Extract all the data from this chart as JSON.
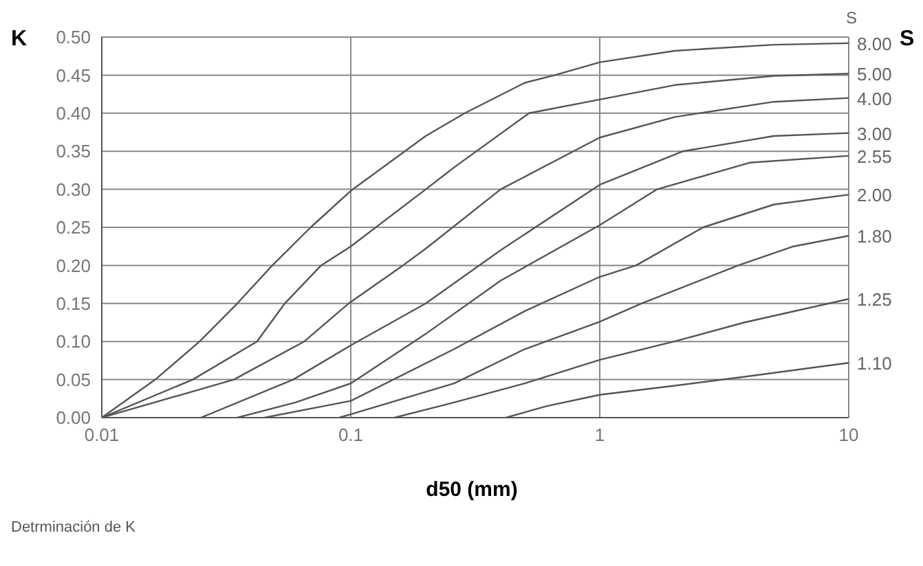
{
  "chart_data": {
    "type": "line",
    "ylabel": "K",
    "xlabel": "d50 (mm)",
    "legend_title": "S",
    "y2label": "S",
    "annotations": [
      "Detrminación de K"
    ],
    "log": "x",
    "grid": true,
    "marker": "none",
    "line_style": "solid",
    "xlim": [
      0.01,
      10
    ],
    "xticks": [
      0.01,
      0.1,
      1,
      10
    ],
    "ylim": [
      0,
      0.5
    ],
    "yticks": [
      {
        "value": 0,
        "label": "0.00"
      },
      {
        "value": 0.05,
        "label": "0.05"
      },
      {
        "value": 0.1,
        "label": "0.10"
      },
      {
        "value": 0.15,
        "label": "0.15"
      },
      {
        "value": 0.2,
        "label": "0.20"
      },
      {
        "value": 0.25,
        "label": "0.25"
      },
      {
        "value": 0.3,
        "label": "0.30"
      },
      {
        "value": 0.35,
        "label": "0.35"
      },
      {
        "value": 0.4,
        "label": "0.40"
      },
      {
        "value": 0.45,
        "label": "0.45"
      },
      {
        "value": 0.5,
        "label": "0.50"
      }
    ],
    "series": [
      {
        "name": "8.00",
        "color": "#555555",
        "x": [
          0.01,
          0.0164,
          0.0247,
          0.035,
          0.0484,
          0.069,
          0.1,
          0.2,
          0.287,
          0.5,
          0.66,
          1,
          2,
          5,
          10
        ],
        "values": [
          0,
          0.05,
          0.1,
          0.15,
          0.2,
          0.25,
          0.298,
          0.37,
          0.4,
          0.44,
          0.45,
          0.467,
          0.482,
          0.49,
          0.492
        ]
      },
      {
        "name": "5.00",
        "color": "#555555",
        "x": [
          0.01,
          0.0232,
          0.042,
          0.0543,
          0.076,
          0.1,
          0.2,
          0.263,
          0.52,
          1,
          2,
          5,
          10
        ],
        "values": [
          0,
          0.05,
          0.1,
          0.15,
          0.2,
          0.225,
          0.3,
          0.33,
          0.4,
          0.418,
          0.437,
          0.449,
          0.452
        ]
      },
      {
        "name": "4.00",
        "color": "#555555",
        "x": [
          0.01,
          0.0339,
          0.065,
          0.098,
          0.162,
          0.2,
          0.4,
          1,
          2,
          5,
          10
        ],
        "values": [
          0,
          0.05,
          0.1,
          0.15,
          0.2,
          0.222,
          0.3,
          0.368,
          0.395,
          0.415,
          0.42
        ]
      },
      {
        "name": "3.00",
        "color": "#555555",
        "x": [
          0.025,
          0.0587,
          0.1,
          0.2,
          0.4,
          1,
          2.16,
          5,
          10
        ],
        "values": [
          0,
          0.05,
          0.095,
          0.15,
          0.22,
          0.306,
          0.35,
          0.37,
          0.374
        ]
      },
      {
        "name": "2.55",
        "color": "#555555",
        "x": [
          0.035,
          0.06,
          0.1,
          0.2,
          0.4,
          1,
          1.7,
          4,
          10
        ],
        "values": [
          0,
          0.02,
          0.045,
          0.11,
          0.18,
          0.253,
          0.3,
          0.335,
          0.344
        ]
      },
      {
        "name": "2.00",
        "color": "#555555",
        "x": [
          0.045,
          0.1,
          0.26,
          0.5,
          1,
          1.4,
          2.6,
          5,
          10
        ],
        "values": [
          0,
          0.022,
          0.09,
          0.14,
          0.185,
          0.2,
          0.25,
          0.28,
          0.293
        ]
      },
      {
        "name": "1.80",
        "color": "#555555",
        "x": [
          0.09,
          0.26,
          0.5,
          1,
          1.47,
          3.6,
          6,
          10
        ],
        "values": [
          0,
          0.045,
          0.09,
          0.126,
          0.15,
          0.2,
          0.225,
          0.239
        ]
      },
      {
        "name": "1.25",
        "color": "#555555",
        "x": [
          0.15,
          0.26,
          0.5,
          1,
          1.99,
          3.8,
          10
        ],
        "values": [
          0,
          0.02,
          0.045,
          0.076,
          0.1,
          0.125,
          0.156
        ]
      },
      {
        "name": "1.10",
        "color": "#555555",
        "x": [
          0.42,
          0.61,
          1,
          2,
          4.1,
          10
        ],
        "values": [
          0,
          0.015,
          0.03,
          0.042,
          0.055,
          0.072
        ]
      }
    ]
  }
}
